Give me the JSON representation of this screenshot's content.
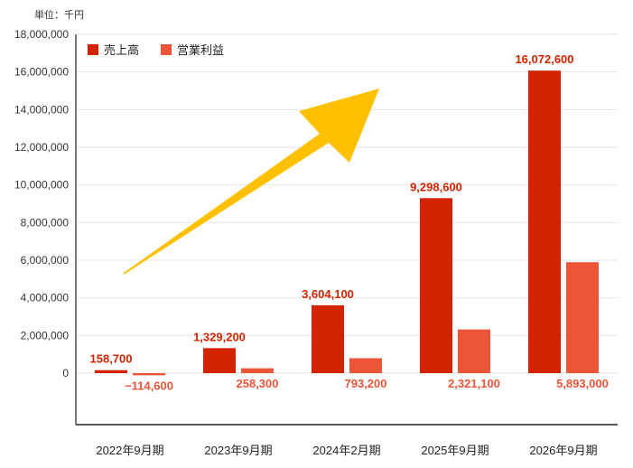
{
  "unit_label": "単位：千円",
  "chart_data": {
    "type": "bar",
    "unit": "千円",
    "categories": [
      "2022年9月期",
      "2023年9月期",
      "2024年2月期",
      "2025年9月期",
      "2026年9月期"
    ],
    "series": [
      {
        "name": "売上高",
        "color": "#d42300",
        "values": [
          158700,
          1329200,
          3604100,
          9298600,
          16072600
        ]
      },
      {
        "name": "営業利益",
        "color": "#ee5538",
        "values": [
          -114600,
          258300,
          793200,
          2321100,
          5893000
        ]
      }
    ],
    "labels": {
      "売上高": [
        "158,700",
        "1,329,200",
        "3,604,100",
        "9,298,600",
        "16,072,600"
      ],
      "営業利益": [
        "−114,600",
        "258,300",
        "793,200",
        "2,321,100",
        "5,893,000"
      ]
    },
    "yticks": [
      "18,000,000",
      "16,000,000",
      "14,000,000",
      "12,000,000",
      "10,000,000",
      "8,000,000",
      "6,000,000",
      "4,000,000",
      "2,000,000",
      "0"
    ],
    "ylim": [
      -2700000,
      18000000
    ],
    "grid": true,
    "legend": "top-left",
    "arrow_color": "#ffc000"
  }
}
